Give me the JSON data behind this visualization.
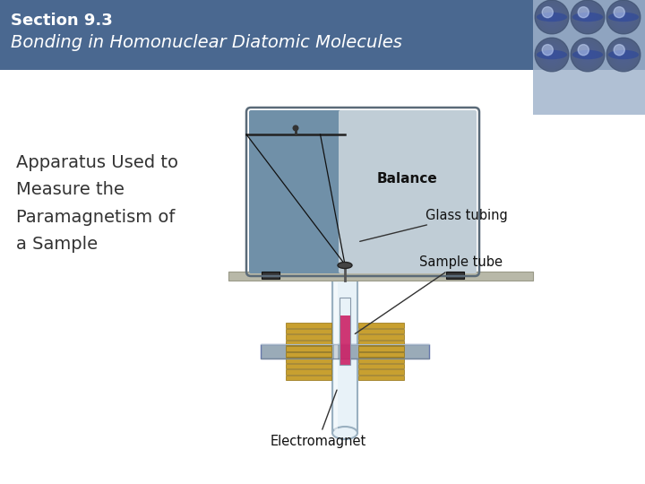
{
  "title_line1": "Section 9.3",
  "title_line2": "Bonding in Homonuclear Diatomic Molecules",
  "header_bg": "#4a6890",
  "header_text": "#ffffff",
  "body_bg": "#ffffff",
  "body_text": "Apparatus Used to\nMeasure the\nParamagnetism of\na Sample",
  "body_text_color": "#333333",
  "label_glass": "Glass tubing",
  "label_sample": "Sample tube",
  "label_magnet": "Electromagnet",
  "label_balance": "Balance",
  "sphere_bg_top": "#8fa4c0",
  "sphere_bg_bot": "#b0c0d4",
  "balance_left_color": "#7090a8",
  "balance_right_color": "#c0cdd6",
  "shelf_color": "#b8b8a8",
  "coil_color": "#c8a030",
  "coil_edge": "#907010",
  "rod_color": "#9aabb8",
  "glass_fill": "#e8f2f8",
  "glass_edge": "#9ab0c0",
  "pink_color": "#cc2266",
  "foot_color": "#333333"
}
